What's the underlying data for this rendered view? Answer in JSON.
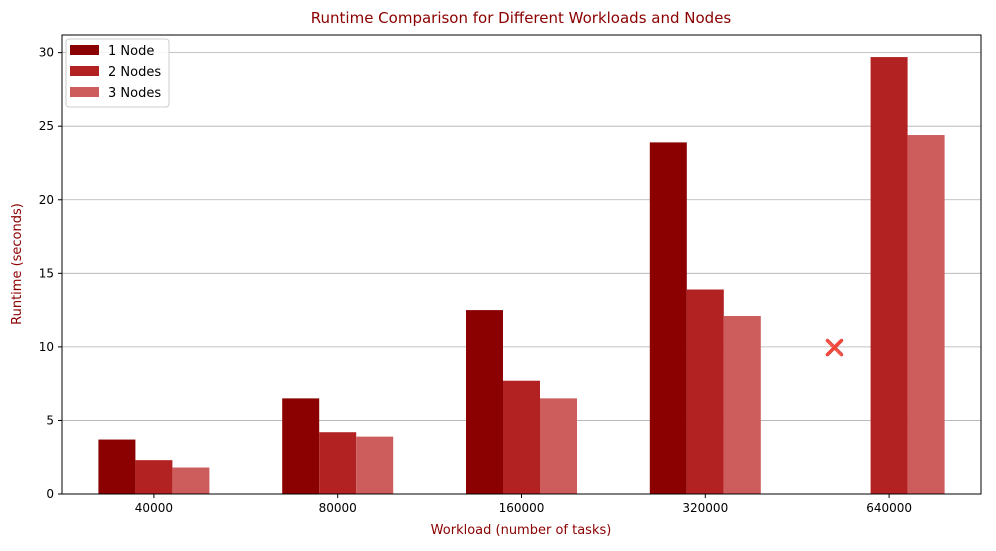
{
  "chart_data": {
    "type": "bar",
    "title": "Runtime Comparison for Different Workloads and Nodes",
    "xlabel": "Workload (number of tasks)",
    "ylabel": "Runtime (seconds)",
    "categories": [
      "40000",
      "80000",
      "160000",
      "320000",
      "640000"
    ],
    "series": [
      {
        "name": "1 Node",
        "color": "#8b0000",
        "values": [
          3.7,
          6.5,
          12.5,
          23.9,
          null
        ]
      },
      {
        "name": "2 Nodes",
        "color": "#b22222",
        "values": [
          2.3,
          4.2,
          7.7,
          13.9,
          29.7
        ]
      },
      {
        "name": "3 Nodes",
        "color": "#cd5c5c",
        "values": [
          1.8,
          3.9,
          6.5,
          12.1,
          24.4
        ]
      }
    ],
    "ylim": [
      0,
      31.2
    ],
    "yticks": [
      0,
      5,
      10,
      15,
      20,
      25,
      30
    ],
    "grid": "y",
    "legend": "top-left",
    "annotation": {
      "text": "❌",
      "x": "640000",
      "y": 10,
      "color": "#cc0000"
    },
    "text_color": "#8b0000"
  }
}
